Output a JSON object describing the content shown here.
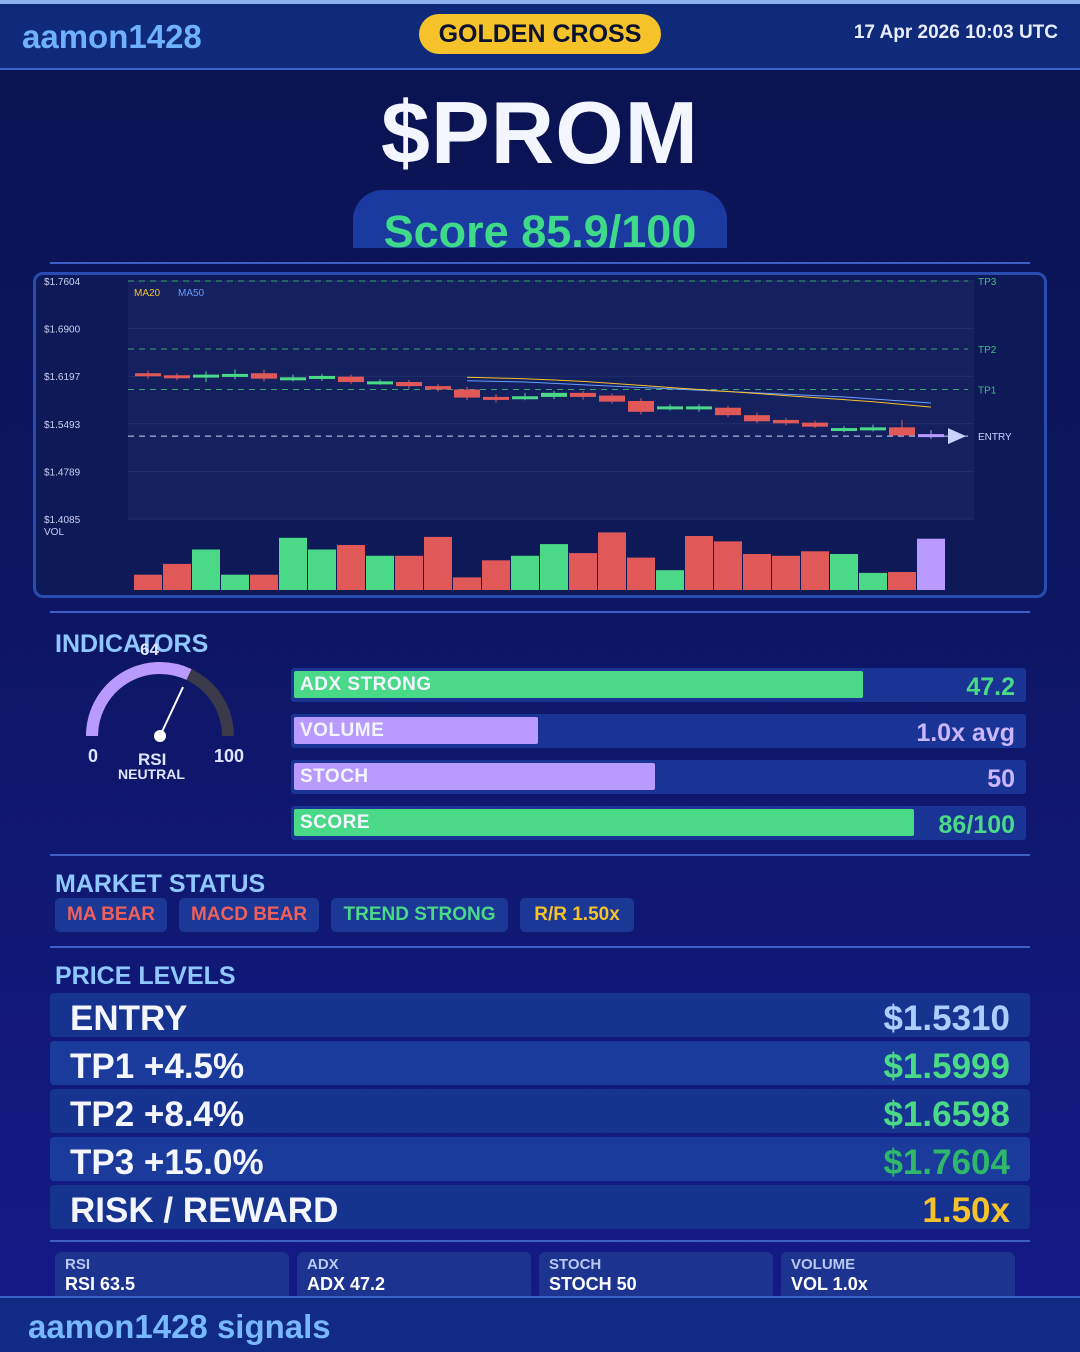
{
  "header": {
    "handle": "aamon1428",
    "badge": "GOLDEN CROSS",
    "datetime": "17 Apr 2026  10:03 UTC"
  },
  "title": {
    "ticker": "$PROM",
    "score": "Score 85.9/100"
  },
  "chart_data": {
    "type": "candlestick",
    "y_ticks": [
      "$1.7604",
      "$1.6900",
      "$1.6197",
      "$1.5493",
      "$1.4789",
      "$1.4085"
    ],
    "ylim": [
      1.4085,
      1.7604
    ],
    "legend": [
      "MA20",
      "MA50"
    ],
    "level_labels": {
      "tp3": "TP3",
      "tp2": "TP2",
      "tp1": "TP1",
      "entry": "ENTRY"
    },
    "levels": {
      "tp3": 1.7604,
      "tp2": 1.6598,
      "tp1": 1.5999,
      "entry": 1.531
    },
    "volume_label": "VOL",
    "candles": [
      {
        "o": 1.624,
        "c": 1.621,
        "h": 1.628,
        "l": 1.616
      },
      {
        "o": 1.621,
        "c": 1.618,
        "h": 1.624,
        "l": 1.614
      },
      {
        "o": 1.618,
        "c": 1.622,
        "h": 1.627,
        "l": 1.611
      },
      {
        "o": 1.621,
        "c": 1.623,
        "h": 1.63,
        "l": 1.615
      },
      {
        "o": 1.624,
        "c": 1.616,
        "h": 1.629,
        "l": 1.612
      },
      {
        "o": 1.616,
        "c": 1.618,
        "h": 1.622,
        "l": 1.612
      },
      {
        "o": 1.617,
        "c": 1.62,
        "h": 1.623,
        "l": 1.613
      },
      {
        "o": 1.619,
        "c": 1.611,
        "h": 1.622,
        "l": 1.608
      },
      {
        "o": 1.611,
        "c": 1.612,
        "h": 1.615,
        "l": 1.607
      },
      {
        "o": 1.611,
        "c": 1.605,
        "h": 1.614,
        "l": 1.601
      },
      {
        "o": 1.605,
        "c": 1.6,
        "h": 1.608,
        "l": 1.597
      },
      {
        "o": 1.6,
        "c": 1.588,
        "h": 1.604,
        "l": 1.584
      },
      {
        "o": 1.589,
        "c": 1.585,
        "h": 1.593,
        "l": 1.581
      },
      {
        "o": 1.587,
        "c": 1.59,
        "h": 1.595,
        "l": 1.584
      },
      {
        "o": 1.589,
        "c": 1.595,
        "h": 1.598,
        "l": 1.586
      },
      {
        "o": 1.595,
        "c": 1.589,
        "h": 1.598,
        "l": 1.585
      },
      {
        "o": 1.591,
        "c": 1.582,
        "h": 1.594,
        "l": 1.579
      },
      {
        "o": 1.583,
        "c": 1.567,
        "h": 1.587,
        "l": 1.563
      },
      {
        "o": 1.572,
        "c": 1.575,
        "h": 1.578,
        "l": 1.569
      },
      {
        "o": 1.572,
        "c": 1.575,
        "h": 1.578,
        "l": 1.567
      },
      {
        "o": 1.573,
        "c": 1.562,
        "h": 1.576,
        "l": 1.559
      },
      {
        "o": 1.562,
        "c": 1.553,
        "h": 1.566,
        "l": 1.55
      },
      {
        "o": 1.555,
        "c": 1.55,
        "h": 1.558,
        "l": 1.547
      },
      {
        "o": 1.551,
        "c": 1.545,
        "h": 1.554,
        "l": 1.543
      },
      {
        "o": 1.54,
        "c": 1.543,
        "h": 1.546,
        "l": 1.537
      },
      {
        "o": 1.541,
        "c": 1.544,
        "h": 1.548,
        "l": 1.538
      },
      {
        "o": 1.544,
        "c": 1.532,
        "h": 1.555,
        "l": 1.53
      },
      {
        "o": 1.534,
        "c": 1.531,
        "h": 1.54,
        "l": 1.527
      }
    ],
    "ma20": [
      1.618,
      1.617,
      1.616,
      1.614,
      1.612,
      1.609,
      1.606,
      1.603,
      1.6,
      1.597,
      1.594,
      1.591,
      1.588,
      1.585,
      1.582,
      1.578,
      1.574
    ],
    "ma50": [
      1.613,
      1.612,
      1.611,
      1.609,
      1.607,
      1.605,
      1.603,
      1.601,
      1.599,
      1.597,
      1.595,
      1.593,
      1.591,
      1.589,
      1.586,
      1.583,
      1.58
    ],
    "volume": [
      17,
      29,
      45,
      17,
      17,
      58,
      45,
      50,
      38,
      38,
      59,
      14,
      33,
      38,
      51,
      41,
      64,
      36,
      22,
      60,
      54,
      40,
      38,
      43,
      40,
      19,
      20,
      57
    ],
    "volume_colors": [
      "r",
      "r",
      "g",
      "g",
      "r",
      "g",
      "g",
      "r",
      "g",
      "r",
      "r",
      "r",
      "r",
      "g",
      "g",
      "r",
      "r",
      "r",
      "g",
      "r",
      "r",
      "r",
      "r",
      "r",
      "g",
      "g",
      "r",
      "p"
    ]
  },
  "indicators": {
    "title": "INDICATORS",
    "rsi": {
      "value": 64,
      "min": "0",
      "max": "100",
      "label": "RSI",
      "status": "NEUTRAL"
    },
    "bars": [
      {
        "label": "ADX  STRONG",
        "value": "47.2",
        "fill": 0.78,
        "color": "#4ad986",
        "value_color": "#4ad986"
      },
      {
        "label": "VOLUME",
        "value": "1.0x avg",
        "fill": 0.335,
        "color": "#b99bff",
        "value_color": "#c9b6ff"
      },
      {
        "label": "STOCH",
        "value": "50",
        "fill": 0.495,
        "color": "#b99bff",
        "value_color": "#c9b6ff"
      },
      {
        "label": "SCORE",
        "value": "86/100",
        "fill": 0.85,
        "color": "#4ad986",
        "value_color": "#4ad986"
      }
    ]
  },
  "market_status": {
    "title": "MARKET STATUS",
    "tags": [
      {
        "label": "MA BEAR",
        "color": "#f0605a"
      },
      {
        "label": "MACD BEAR",
        "color": "#f0605a"
      },
      {
        "label": "TREND STRONG",
        "color": "#4ad986"
      },
      {
        "label": "R/R  1.50x",
        "color": "#f6c22a"
      }
    ]
  },
  "price_levels": {
    "title": "PRICE LEVELS",
    "rows": [
      {
        "label": "ENTRY",
        "value": "$1.5310",
        "color": "#a9cfff"
      },
      {
        "label": "TP1  +4.5%",
        "value": "$1.5999",
        "color": "#4ad986"
      },
      {
        "label": "TP2  +8.4%",
        "value": "$1.6598",
        "color": "#4ad986"
      },
      {
        "label": "TP3  +15.0%",
        "value": "$1.7604",
        "color": "#2fb86a"
      },
      {
        "label": "RISK / REWARD",
        "value": "1.50x",
        "color": "#f6c22a"
      }
    ]
  },
  "stats": [
    {
      "key": "RSI",
      "value": "RSI 63.5"
    },
    {
      "key": "ADX",
      "value": "ADX 47.2"
    },
    {
      "key": "STOCH",
      "value": "STOCH 50"
    },
    {
      "key": "VOLUME",
      "value": "VOL 1.0x"
    }
  ],
  "footer": {
    "text": "aamon1428 signals"
  }
}
